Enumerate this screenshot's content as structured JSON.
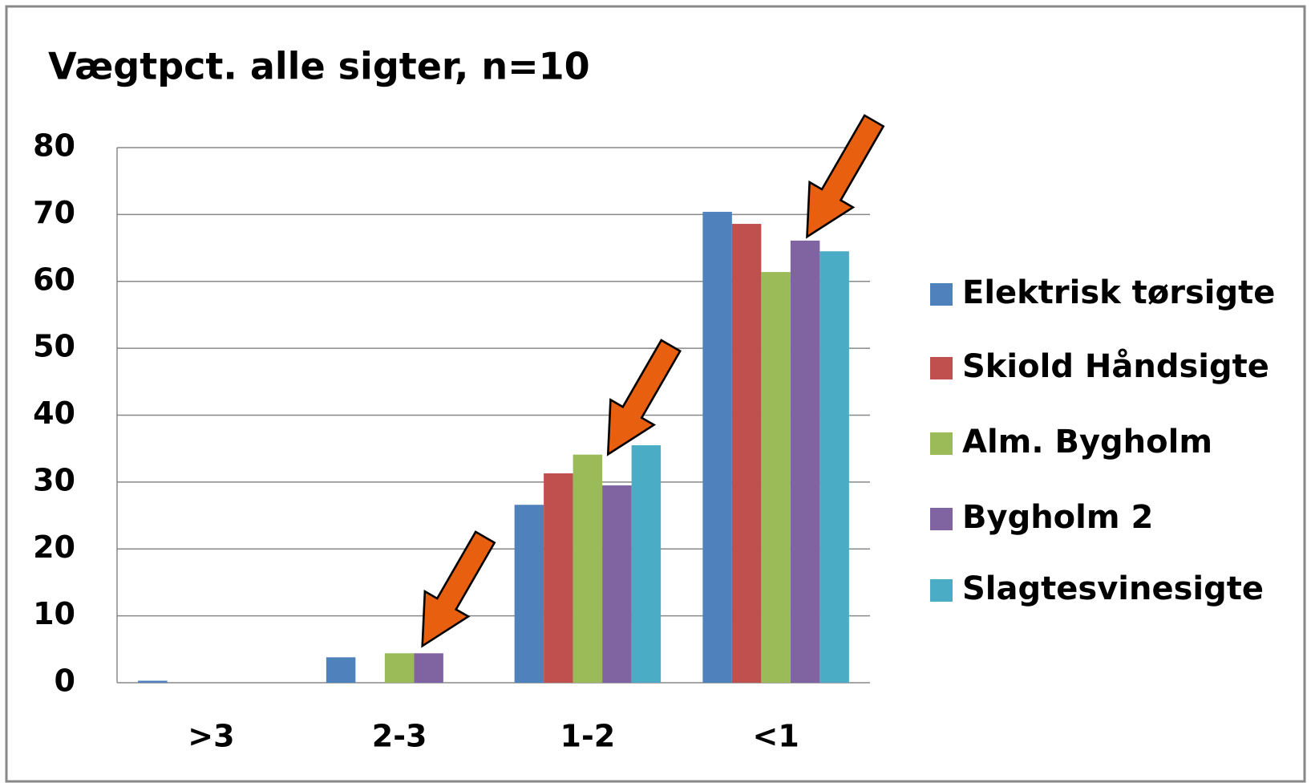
{
  "chart_data": {
    "type": "bar",
    "title": "Vægtpct. alle sigter,  n=10",
    "categories": [
      ">3",
      "2-3",
      "1-2",
      "<1"
    ],
    "series": [
      {
        "name": "Elektrisk tørsigte",
        "color": "#4f81bd",
        "values": [
          0.3,
          3.8,
          26.6,
          70.4
        ]
      },
      {
        "name": "Skiold Håndsigte",
        "color": "#c0504d",
        "values": [
          0,
          0,
          31.3,
          68.6
        ]
      },
      {
        "name": "Alm. Bygholm",
        "color": "#9bbb59",
        "values": [
          0,
          4.4,
          34.1,
          61.4
        ]
      },
      {
        "name": "Bygholm 2",
        "color": "#8064a2",
        "values": [
          0,
          4.4,
          29.5,
          66.1
        ]
      },
      {
        "name": "Slagtesvinesigte",
        "color": "#4bacc6",
        "values": [
          0,
          0,
          35.5,
          64.5
        ]
      }
    ],
    "ylim": [
      0,
      80
    ],
    "yticks": [
      0,
      10,
      20,
      30,
      40,
      50,
      60,
      70,
      80
    ],
    "grid": true,
    "legend": "right"
  }
}
